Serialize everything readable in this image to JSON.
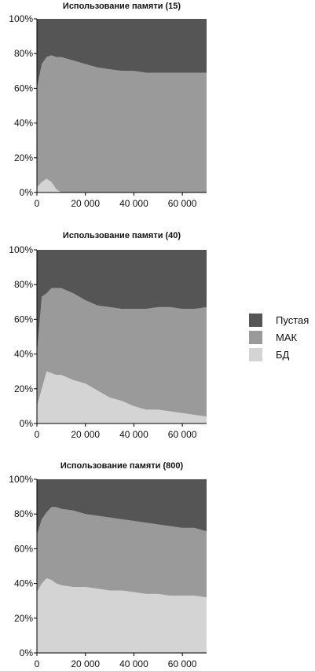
{
  "colors": {
    "empty": "#555555",
    "mac": "#9a9a9a",
    "db": "#d4d4d4"
  },
  "legend": [
    {
      "label": "Пустая",
      "color": "#555555"
    },
    {
      "label": "МАК",
      "color": "#9a9a9a"
    },
    {
      "label": "БД",
      "color": "#d4d4d4"
    }
  ],
  "chart_data": [
    {
      "type": "area",
      "stacked": true,
      "title": "Использование памяти (15)",
      "xlabel": "",
      "ylabel": "",
      "xlim": [
        0,
        70000
      ],
      "ylim": [
        0,
        100
      ],
      "x_ticks": [
        0,
        20000,
        40000,
        60000
      ],
      "x_tick_labels": [
        "0",
        "20 000",
        "40 000",
        "60 000"
      ],
      "y_ticks": [
        0,
        20,
        40,
        60,
        80,
        100
      ],
      "y_tick_labels": [
        "0%",
        "20%",
        "40%",
        "60%",
        "80%",
        "100%"
      ],
      "x": [
        0,
        2000,
        4000,
        6000,
        8000,
        10000,
        15000,
        20000,
        25000,
        30000,
        35000,
        40000,
        45000,
        50000,
        55000,
        60000,
        65000,
        70000
      ],
      "series": [
        {
          "name": "БД",
          "values": [
            3,
            6,
            8,
            6,
            2,
            0,
            0,
            0,
            0,
            0,
            0,
            0,
            0,
            0,
            0,
            0,
            0,
            0
          ]
        },
        {
          "name": "МАК",
          "values": [
            57,
            68,
            70,
            73,
            76,
            78,
            76,
            74,
            72,
            71,
            70,
            70,
            69,
            69,
            69,
            69,
            69,
            69
          ]
        },
        {
          "name": "Пустая",
          "values": [
            40,
            26,
            22,
            21,
            22,
            22,
            24,
            26,
            28,
            29,
            30,
            30,
            31,
            31,
            31,
            31,
            31,
            31
          ]
        }
      ]
    },
    {
      "type": "area",
      "stacked": true,
      "title": "Использование памяти (40)",
      "xlabel": "",
      "ylabel": "",
      "xlim": [
        0,
        70000
      ],
      "ylim": [
        0,
        100
      ],
      "x_ticks": [
        0,
        20000,
        40000,
        60000
      ],
      "x_tick_labels": [
        "0",
        "20 000",
        "40 000",
        "60 000"
      ],
      "y_ticks": [
        0,
        20,
        40,
        60,
        80,
        100
      ],
      "y_tick_labels": [
        "0%",
        "20%",
        "40%",
        "60%",
        "80%",
        "100%"
      ],
      "x": [
        0,
        2000,
        4000,
        6000,
        8000,
        10000,
        15000,
        20000,
        25000,
        30000,
        35000,
        40000,
        45000,
        50000,
        55000,
        60000,
        65000,
        70000
      ],
      "series": [
        {
          "name": "БД",
          "values": [
            10,
            20,
            30,
            29,
            28,
            28,
            25,
            23,
            19,
            15,
            13,
            10,
            8,
            8,
            7,
            6,
            5,
            4
          ]
        },
        {
          "name": "МАК",
          "values": [
            30,
            53,
            45,
            49,
            50,
            50,
            50,
            48,
            49,
            52,
            53,
            56,
            58,
            59,
            60,
            60,
            61,
            63
          ]
        },
        {
          "name": "Пустая",
          "values": [
            60,
            27,
            25,
            22,
            22,
            22,
            25,
            29,
            32,
            33,
            34,
            34,
            34,
            33,
            33,
            34,
            34,
            33
          ]
        }
      ]
    },
    {
      "type": "area",
      "stacked": true,
      "title": "Использование памяти (800)",
      "xlabel": "",
      "ylabel": "",
      "xlim": [
        0,
        70000
      ],
      "ylim": [
        0,
        100
      ],
      "x_ticks": [
        0,
        20000,
        40000,
        60000
      ],
      "x_tick_labels": [
        "0",
        "20 000",
        "40 000",
        "60 000"
      ],
      "y_ticks": [
        0,
        20,
        40,
        60,
        80,
        100
      ],
      "y_tick_labels": [
        "0%",
        "20%",
        "40%",
        "60%",
        "80%",
        "100%"
      ],
      "x": [
        0,
        2000,
        4000,
        6000,
        8000,
        10000,
        15000,
        20000,
        25000,
        30000,
        35000,
        40000,
        45000,
        50000,
        55000,
        60000,
        65000,
        70000
      ],
      "series": [
        {
          "name": "БД",
          "values": [
            35,
            40,
            43,
            42,
            40,
            39,
            38,
            38,
            37,
            36,
            36,
            35,
            34,
            34,
            33,
            33,
            33,
            32
          ]
        },
        {
          "name": "МАК",
          "values": [
            33,
            37,
            38,
            42,
            44,
            44,
            44,
            42,
            42,
            42,
            41,
            41,
            41,
            40,
            40,
            39,
            39,
            38
          ]
        },
        {
          "name": "Пустая",
          "values": [
            32,
            23,
            19,
            16,
            16,
            17,
            18,
            20,
            21,
            22,
            23,
            24,
            25,
            26,
            27,
            28,
            28,
            30
          ]
        }
      ]
    }
  ]
}
